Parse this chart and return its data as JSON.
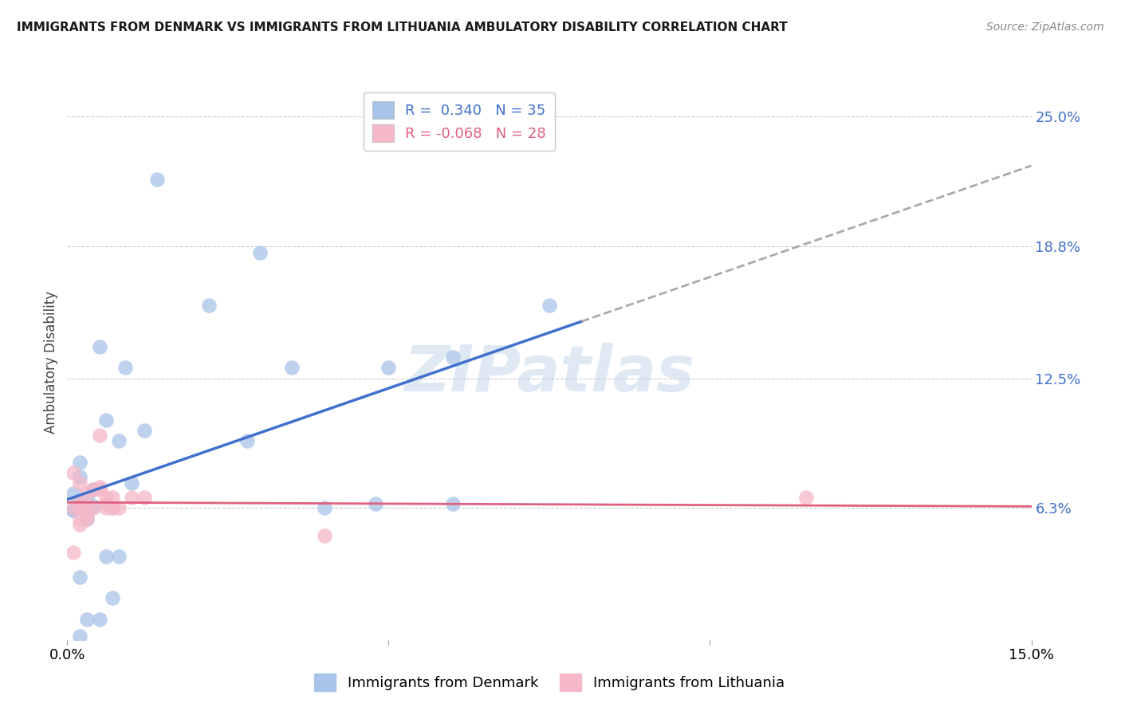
{
  "title": "IMMIGRANTS FROM DENMARK VS IMMIGRANTS FROM LITHUANIA AMBULATORY DISABILITY CORRELATION CHART",
  "source": "Source: ZipAtlas.com",
  "ylabel": "Ambulatory Disability",
  "ytick_labels": [
    "6.3%",
    "12.5%",
    "18.8%",
    "25.0%"
  ],
  "ytick_values": [
    0.063,
    0.125,
    0.188,
    0.25
  ],
  "xlim": [
    0.0,
    0.15
  ],
  "ylim": [
    0.0,
    0.265
  ],
  "denmark_R": 0.34,
  "denmark_N": 35,
  "lithuania_R": -0.068,
  "lithuania_N": 28,
  "denmark_color": "#a8c4e8",
  "lithuania_color": "#f5b8c8",
  "denmark_line_color": "#4070cc",
  "lithuania_line_color": "#e06080",
  "grey_dash_color": "#aaaaaa",
  "right_label_color": "#4070cc",
  "legend_label_denmark": "Immigrants from Denmark",
  "legend_label_lithuania": "Immigrants from Lithuania",
  "denmark_x": [
    0.014,
    0.005,
    0.022,
    0.006,
    0.002,
    0.001,
    0.003,
    0.002,
    0.001,
    0.001,
    0.003,
    0.004,
    0.002,
    0.004,
    0.012,
    0.008,
    0.009,
    0.01,
    0.03,
    0.035,
    0.048,
    0.06,
    0.002,
    0.006,
    0.007,
    0.005,
    0.003,
    0.002,
    0.008,
    0.002,
    0.05,
    0.075,
    0.028,
    0.04,
    0.06
  ],
  "denmark_y": [
    0.22,
    0.14,
    0.16,
    0.105,
    0.085,
    0.062,
    0.068,
    0.065,
    0.07,
    0.062,
    0.058,
    0.072,
    0.078,
    0.064,
    0.1,
    0.095,
    0.13,
    0.075,
    0.185,
    0.13,
    0.065,
    0.135,
    0.03,
    0.04,
    0.02,
    0.01,
    0.01,
    0.002,
    0.04,
    0.065,
    0.13,
    0.16,
    0.095,
    0.063,
    0.065
  ],
  "lithuania_x": [
    0.001,
    0.002,
    0.003,
    0.002,
    0.004,
    0.005,
    0.003,
    0.004,
    0.002,
    0.001,
    0.006,
    0.006,
    0.005,
    0.007,
    0.008,
    0.005,
    0.007,
    0.01,
    0.007,
    0.012,
    0.04,
    0.006,
    0.003,
    0.002,
    0.001,
    0.003,
    0.115,
    0.002
  ],
  "lithuania_y": [
    0.08,
    0.075,
    0.07,
    0.065,
    0.072,
    0.098,
    0.063,
    0.063,
    0.058,
    0.063,
    0.063,
    0.068,
    0.072,
    0.063,
    0.063,
    0.073,
    0.068,
    0.068,
    0.063,
    0.068,
    0.05,
    0.065,
    0.06,
    0.055,
    0.042,
    0.058,
    0.068,
    0.063
  ],
  "watermark": "ZIPatlas",
  "background_color": "#ffffff",
  "grid_color": "#cccccc"
}
